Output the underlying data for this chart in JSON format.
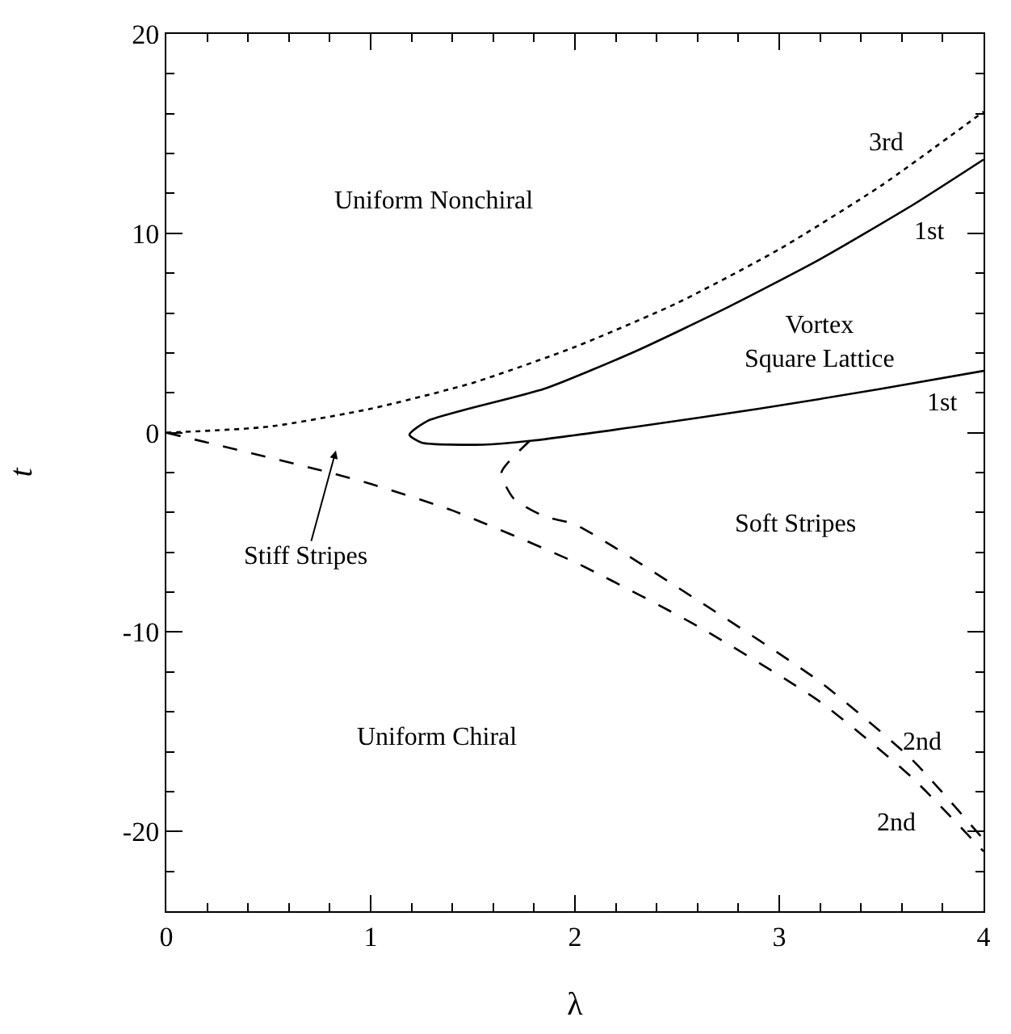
{
  "chart_data": {
    "type": "line",
    "xlabel": "λ",
    "ylabel": "t",
    "xlim": [
      0,
      4
    ],
    "ylim": [
      -24,
      20
    ],
    "xticks": [
      0,
      {
        "value": 0.2,
        "label": null
      },
      {
        "value": 0.4,
        "label": null
      },
      {
        "value": 0.6,
        "label": null
      },
      {
        "value": 0.8,
        "label": null
      },
      1,
      {
        "value": 1.2,
        "label": null
      },
      {
        "value": 1.4,
        "label": null
      },
      {
        "value": 1.6,
        "label": null
      },
      {
        "value": 1.8,
        "label": null
      },
      2,
      {
        "value": 2.2,
        "label": null
      },
      {
        "value": 2.4,
        "label": null
      },
      {
        "value": 2.6,
        "label": null
      },
      {
        "value": 2.8,
        "label": null
      },
      3,
      {
        "value": 3.2,
        "label": null
      },
      {
        "value": 3.4,
        "label": null
      },
      {
        "value": 3.6,
        "label": null
      },
      {
        "value": 3.8,
        "label": null
      },
      4
    ],
    "yticks": [
      -20,
      {
        "value": -22,
        "label": null
      },
      {
        "value": -18,
        "label": null
      },
      {
        "value": -16,
        "label": null
      },
      {
        "value": -14,
        "label": null
      },
      {
        "value": -12,
        "label": null
      },
      -10,
      {
        "value": -8,
        "label": null
      },
      {
        "value": -6,
        "label": null
      },
      {
        "value": -4,
        "label": null
      },
      {
        "value": -2,
        "label": null
      },
      0,
      {
        "value": 2,
        "label": null
      },
      {
        "value": 4,
        "label": null
      },
      {
        "value": 6,
        "label": null
      },
      {
        "value": 8,
        "label": null
      },
      10,
      {
        "value": 12,
        "label": null
      },
      {
        "value": 14,
        "label": null
      },
      {
        "value": 16,
        "label": null
      },
      {
        "value": 18,
        "label": null
      },
      20
    ],
    "grid": false,
    "marker": "none",
    "series": [
      {
        "color": "#000000",
        "line_style": "dotted",
        "x": [
          0,
          0.5,
          1,
          1.5,
          2,
          2.5,
          3,
          3.5,
          4
        ],
        "values": [
          0,
          0.3,
          1.2,
          2.5,
          4.3,
          6.5,
          9.2,
          12.4,
          16.1
        ]
      },
      {
        "color": "#000000",
        "line_style": "solid",
        "x": [
          4,
          3.65,
          3.2,
          2.75,
          2.3,
          1.85,
          1.28,
          1.19,
          1.25,
          1.55,
          1.79,
          2.3,
          2.9,
          3.5,
          4
        ],
        "values": [
          13.7,
          11.4,
          8.7,
          6.3,
          4.1,
          2.2,
          0.6,
          -0.1,
          -0.5,
          -0.6,
          -0.4,
          0.3,
          1.2,
          2.2,
          3.1
        ]
      },
      {
        "color": "#000000",
        "line_style": "dashed",
        "x": [
          1.78,
          1.64,
          1.7,
          1.85,
          2,
          2.6,
          3.2,
          3.65,
          4
        ],
        "values": [
          -0.4,
          -2.0,
          -3.3,
          -4.2,
          -4.6,
          -8.4,
          -12.5,
          -16.4,
          -20.4
        ]
      },
      {
        "color": "#000000",
        "line_style": "dashed",
        "x": [
          0,
          0.8,
          1.01,
          1.4,
          2,
          2.6,
          3.2,
          3.65,
          4
        ],
        "values": [
          0,
          -2.0,
          -2.6,
          -3.9,
          -6.5,
          -9.7,
          -13.5,
          -17.3,
          -21.0
        ]
      }
    ],
    "annotations": [
      "Uniform Nonchiral",
      "3rd",
      "1st",
      "Vortex\nSquare Lattice",
      "1st",
      "Stiff Stripes",
      "Soft Stripes",
      "Uniform Chiral",
      "2nd",
      "2nd"
    ]
  }
}
